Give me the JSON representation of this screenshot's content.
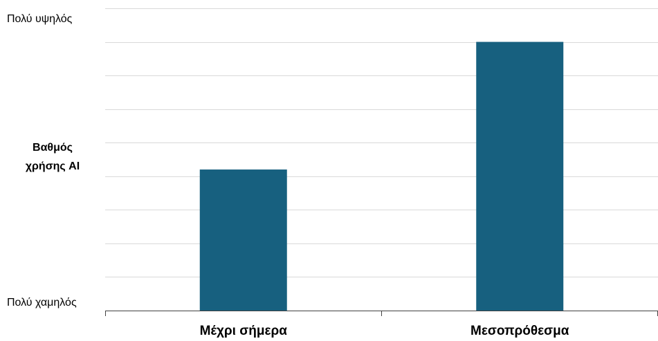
{
  "chart_data": {
    "type": "bar",
    "categories": [
      "Μέχρι σήμερα",
      "Μεσοπρόθεσμα"
    ],
    "values": [
      4.2,
      8.0
    ],
    "ylim": [
      0,
      9
    ],
    "grid": true,
    "ylabel_lines": [
      "Βαθμός",
      "χρήσης AI"
    ],
    "y_top_label": "Πολύ υψηλός",
    "y_bottom_label": "Πολύ χαμηλός",
    "bar_color": "#17607f",
    "grid_color": "#d9d9d9"
  }
}
